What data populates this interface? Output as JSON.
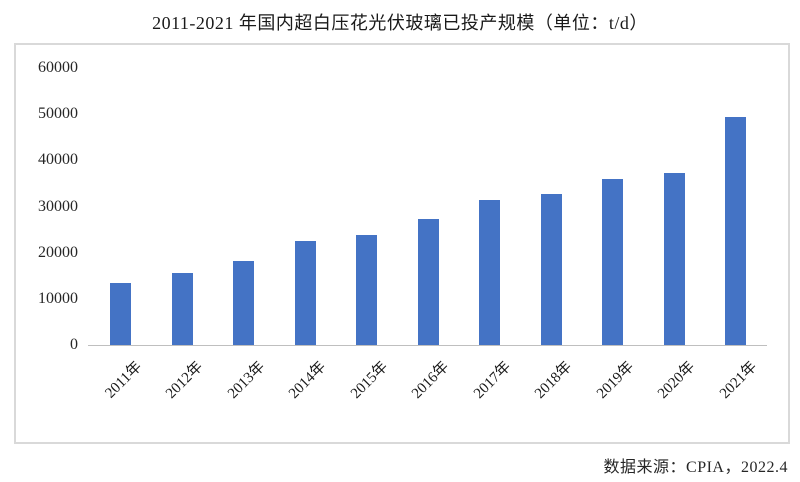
{
  "title": "2011-2021 年国内超白压花光伏玻璃已投产规模（单位：t/d）",
  "source": "数据来源：CPIA，2022.4",
  "chart_data": {
    "type": "bar",
    "title": "2011-2021 年国内超白压花光伏玻璃已投产规模（单位：t/d）",
    "categories": [
      "2011年",
      "2012年",
      "2013年",
      "2014年",
      "2015年",
      "2016年",
      "2017年",
      "2018年",
      "2019年",
      "2020年",
      "2021年"
    ],
    "values": [
      13400,
      15600,
      18300,
      22500,
      23800,
      27200,
      31500,
      32700,
      36000,
      37200,
      49300
    ],
    "unit": "t/d",
    "xlabel": "",
    "ylabel": "",
    "ylim": [
      0,
      60000
    ],
    "yticks": [
      0,
      10000,
      20000,
      30000,
      40000,
      50000,
      60000
    ],
    "grid": false,
    "legend": "none",
    "bar_color": "#4473c5",
    "axis_color": "#bfbfbf",
    "frame_color": "#d9d9d9",
    "source": "数据来源：CPIA，2022.4"
  }
}
